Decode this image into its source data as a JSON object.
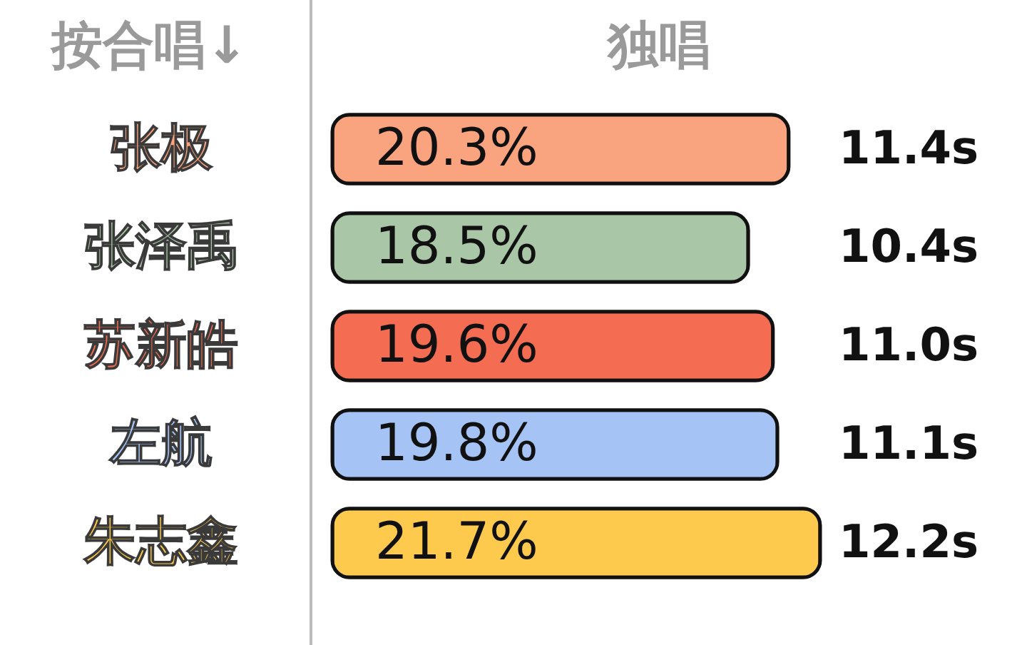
{
  "chart_data": {
    "type": "bar",
    "orientation": "horizontal",
    "title": "独唱",
    "ylabel": "按合唱↓",
    "categories": [
      "张极",
      "张泽禹",
      "苏新皓",
      "左航",
      "朱志鑫"
    ],
    "values": [
      20.3,
      18.5,
      19.6,
      19.8,
      21.7
    ],
    "colors": [
      "#f9a47f",
      "#a9c7a6",
      "#f46d52",
      "#a5c4f5",
      "#fdca4d"
    ],
    "value_labels": [
      "20.3%",
      "18.5%",
      "19.6%",
      "19.8%",
      "21.7%"
    ],
    "annotations": [
      "11.4s",
      "10.4s",
      "11.0s",
      "11.1s",
      "12.2s"
    ]
  }
}
